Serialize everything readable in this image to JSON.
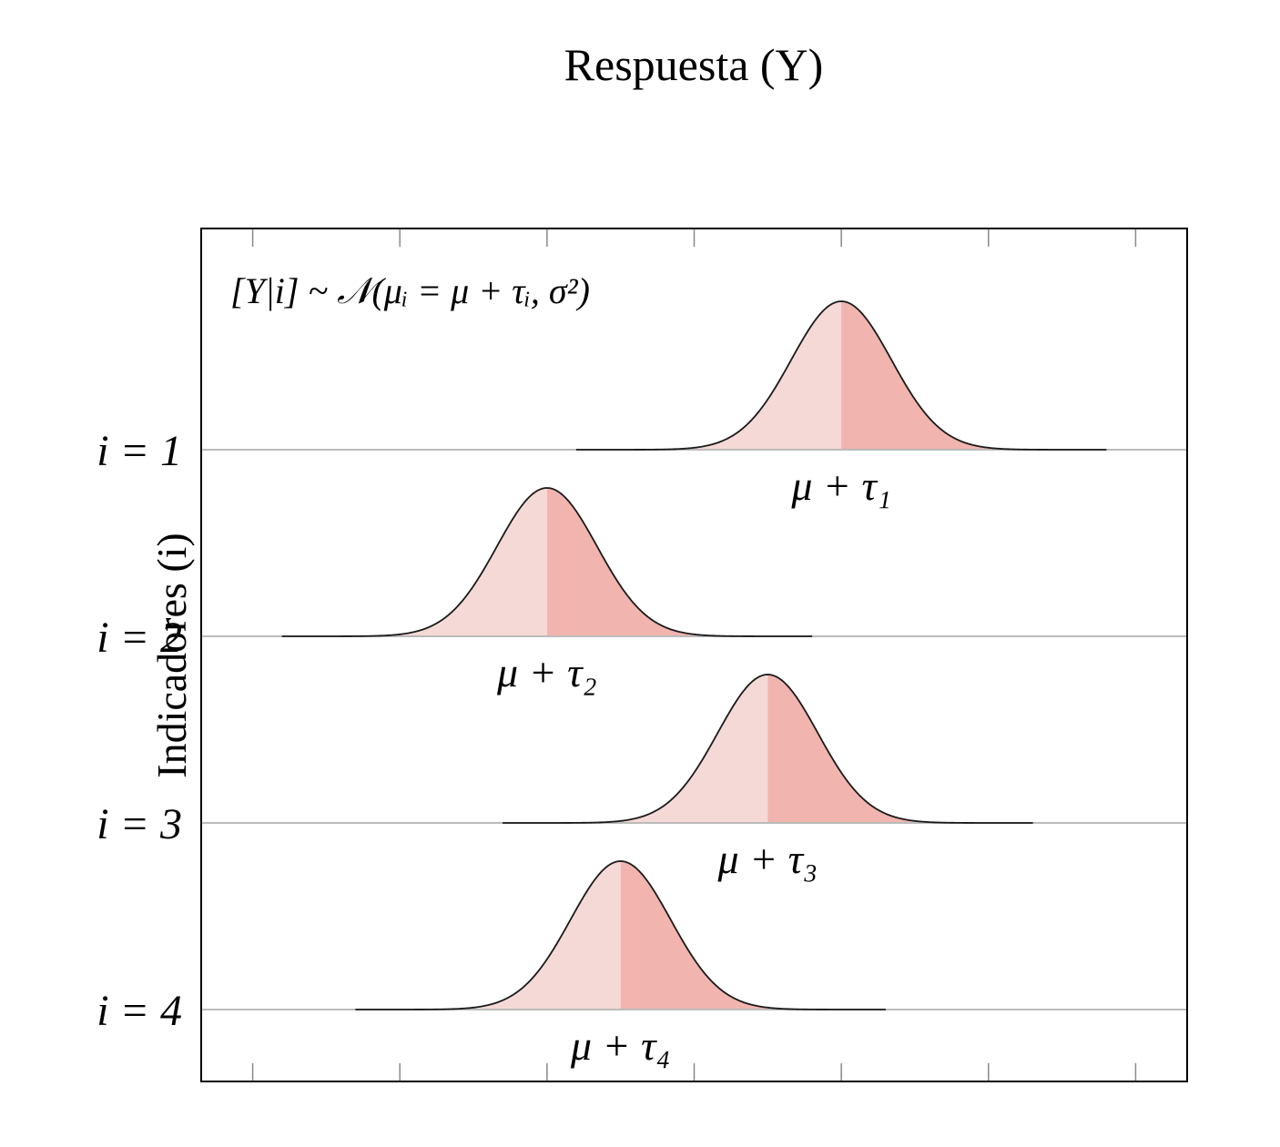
{
  "chart_data": {
    "type": "area",
    "title": "Respuesta (Y)",
    "xlabel": "",
    "ylabel": "Indicadores (i)",
    "annotation": "[Y|i] ~ 𝒩(μᵢ = μ + τᵢ, σ²)",
    "xlim": [
      -1.65,
      5.05
    ],
    "x_ticks": [
      -1.3,
      -0.3,
      0.7,
      1.7,
      2.7,
      3.7,
      4.7
    ],
    "grid": false,
    "legend": "none",
    "series": [
      {
        "indicator": "i = 1",
        "mean": 2.7,
        "sd": 0.34,
        "mean_label": "μ + τ₁"
      },
      {
        "indicator": "i = 2",
        "mean": 0.7,
        "sd": 0.34,
        "mean_label": "μ + τ₂"
      },
      {
        "indicator": "i = 3",
        "mean": 2.2,
        "sd": 0.34,
        "mean_label": "μ + τ₃"
      },
      {
        "indicator": "i = 4",
        "mean": 1.2,
        "sd": 0.34,
        "mean_label": "μ + τ₄"
      }
    ],
    "colors": {
      "fill_left": "#f5d9d6",
      "fill_right": "#f1b4ae",
      "curve": "#1a1a1a",
      "baseline": "#bbbbbb",
      "frame": "#000000"
    }
  }
}
